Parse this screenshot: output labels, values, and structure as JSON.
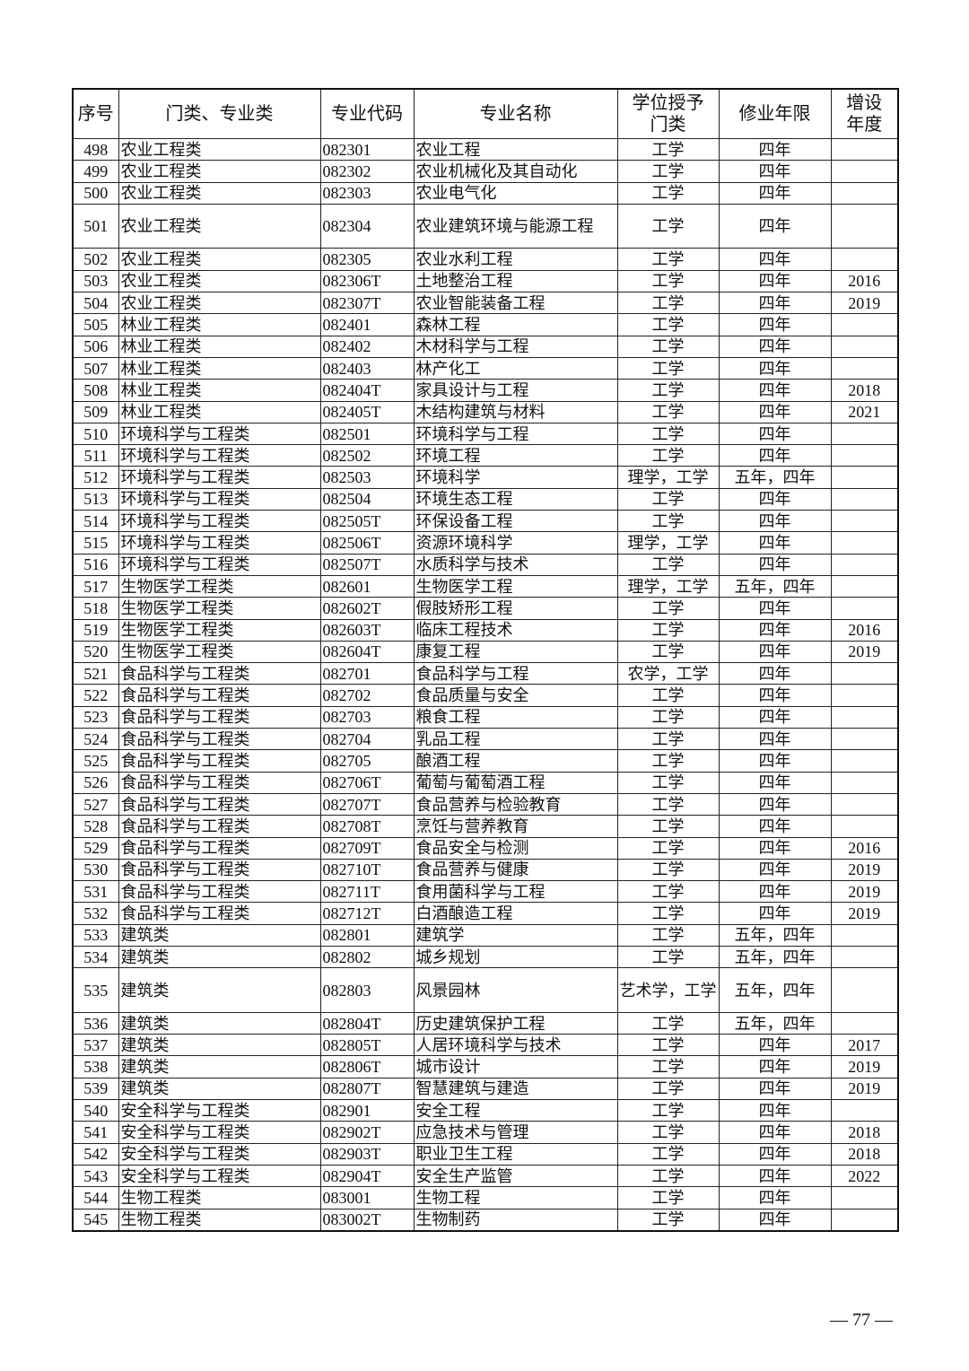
{
  "headers": [
    "序号",
    "门类、专业类",
    "专业代码",
    "专业名称",
    "学位授予门类",
    "修业年限",
    "增设年度"
  ],
  "rows": [
    [
      "498",
      "农业工程类",
      "082301",
      "农业工程",
      "工学",
      "四年",
      ""
    ],
    [
      "499",
      "农业工程类",
      "082302",
      "农业机械化及其自动化",
      "工学",
      "四年",
      ""
    ],
    [
      "500",
      "农业工程类",
      "082303",
      "农业电气化",
      "工学",
      "四年",
      ""
    ],
    [
      "501",
      "农业工程类",
      "082304",
      "农业建筑环境与能源工程",
      "工学",
      "四年",
      ""
    ],
    [
      "502",
      "农业工程类",
      "082305",
      "农业水利工程",
      "工学",
      "四年",
      ""
    ],
    [
      "503",
      "农业工程类",
      "082306T",
      "土地整治工程",
      "工学",
      "四年",
      "2016"
    ],
    [
      "504",
      "农业工程类",
      "082307T",
      "农业智能装备工程",
      "工学",
      "四年",
      "2019"
    ],
    [
      "505",
      "林业工程类",
      "082401",
      "森林工程",
      "工学",
      "四年",
      ""
    ],
    [
      "506",
      "林业工程类",
      "082402",
      "木材科学与工程",
      "工学",
      "四年",
      ""
    ],
    [
      "507",
      "林业工程类",
      "082403",
      "林产化工",
      "工学",
      "四年",
      ""
    ],
    [
      "508",
      "林业工程类",
      "082404T",
      "家具设计与工程",
      "工学",
      "四年",
      "2018"
    ],
    [
      "509",
      "林业工程类",
      "082405T",
      "木结构建筑与材料",
      "工学",
      "四年",
      "2021"
    ],
    [
      "510",
      "环境科学与工程类",
      "082501",
      "环境科学与工程",
      "工学",
      "四年",
      ""
    ],
    [
      "511",
      "环境科学与工程类",
      "082502",
      "环境工程",
      "工学",
      "四年",
      ""
    ],
    [
      "512",
      "环境科学与工程类",
      "082503",
      "环境科学",
      "理学，工学",
      "五年，四年",
      ""
    ],
    [
      "513",
      "环境科学与工程类",
      "082504",
      "环境生态工程",
      "工学",
      "四年",
      ""
    ],
    [
      "514",
      "环境科学与工程类",
      "082505T",
      "环保设备工程",
      "工学",
      "四年",
      ""
    ],
    [
      "515",
      "环境科学与工程类",
      "082506T",
      "资源环境科学",
      "理学，工学",
      "四年",
      ""
    ],
    [
      "516",
      "环境科学与工程类",
      "082507T",
      "水质科学与技术",
      "工学",
      "四年",
      ""
    ],
    [
      "517",
      "生物医学工程类",
      "082601",
      "生物医学工程",
      "理学，工学",
      "五年，四年",
      ""
    ],
    [
      "518",
      "生物医学工程类",
      "082602T",
      "假肢矫形工程",
      "工学",
      "四年",
      ""
    ],
    [
      "519",
      "生物医学工程类",
      "082603T",
      "临床工程技术",
      "工学",
      "四年",
      "2016"
    ],
    [
      "520",
      "生物医学工程类",
      "082604T",
      "康复工程",
      "工学",
      "四年",
      "2019"
    ],
    [
      "521",
      "食品科学与工程类",
      "082701",
      "食品科学与工程",
      "农学，工学",
      "四年",
      ""
    ],
    [
      "522",
      "食品科学与工程类",
      "082702",
      "食品质量与安全",
      "工学",
      "四年",
      ""
    ],
    [
      "523",
      "食品科学与工程类",
      "082703",
      "粮食工程",
      "工学",
      "四年",
      ""
    ],
    [
      "524",
      "食品科学与工程类",
      "082704",
      "乳品工程",
      "工学",
      "四年",
      ""
    ],
    [
      "525",
      "食品科学与工程类",
      "082705",
      "酿酒工程",
      "工学",
      "四年",
      ""
    ],
    [
      "526",
      "食品科学与工程类",
      "082706T",
      "葡萄与葡萄酒工程",
      "工学",
      "四年",
      ""
    ],
    [
      "527",
      "食品科学与工程类",
      "082707T",
      "食品营养与检验教育",
      "工学",
      "四年",
      ""
    ],
    [
      "528",
      "食品科学与工程类",
      "082708T",
      "烹饪与营养教育",
      "工学",
      "四年",
      ""
    ],
    [
      "529",
      "食品科学与工程类",
      "082709T",
      "食品安全与检测",
      "工学",
      "四年",
      "2016"
    ],
    [
      "530",
      "食品科学与工程类",
      "082710T",
      "食品营养与健康",
      "工学",
      "四年",
      "2019"
    ],
    [
      "531",
      "食品科学与工程类",
      "082711T",
      "食用菌科学与工程",
      "工学",
      "四年",
      "2019"
    ],
    [
      "532",
      "食品科学与工程类",
      "082712T",
      "白酒酿造工程",
      "工学",
      "四年",
      "2019"
    ],
    [
      "533",
      "建筑类",
      "082801",
      "建筑学",
      "工学",
      "五年，四年",
      ""
    ],
    [
      "534",
      "建筑类",
      "082802",
      "城乡规划",
      "工学",
      "五年，四年",
      ""
    ],
    [
      "535",
      "建筑类",
      "082803",
      "风景园林",
      "艺术学，工学",
      "五年，四年",
      ""
    ],
    [
      "536",
      "建筑类",
      "082804T",
      "历史建筑保护工程",
      "工学",
      "五年，四年",
      ""
    ],
    [
      "537",
      "建筑类",
      "082805T",
      "人居环境科学与技术",
      "工学",
      "四年",
      "2017"
    ],
    [
      "538",
      "建筑类",
      "082806T",
      "城市设计",
      "工学",
      "四年",
      "2019"
    ],
    [
      "539",
      "建筑类",
      "082807T",
      "智慧建筑与建造",
      "工学",
      "四年",
      "2019"
    ],
    [
      "540",
      "安全科学与工程类",
      "082901",
      "安全工程",
      "工学",
      "四年",
      ""
    ],
    [
      "541",
      "安全科学与工程类",
      "082902T",
      "应急技术与管理",
      "工学",
      "四年",
      "2018"
    ],
    [
      "542",
      "安全科学与工程类",
      "082903T",
      "职业卫生工程",
      "工学",
      "四年",
      "2018"
    ],
    [
      "543",
      "安全科学与工程类",
      "082904T",
      "安全生产监管",
      "工学",
      "四年",
      "2022"
    ],
    [
      "544",
      "生物工程类",
      "083001",
      "生物工程",
      "工学",
      "四年",
      ""
    ],
    [
      "545",
      "生物工程类",
      "083002T",
      "生物制药",
      "工学",
      "四年",
      ""
    ]
  ],
  "page_number": "— 77 —"
}
